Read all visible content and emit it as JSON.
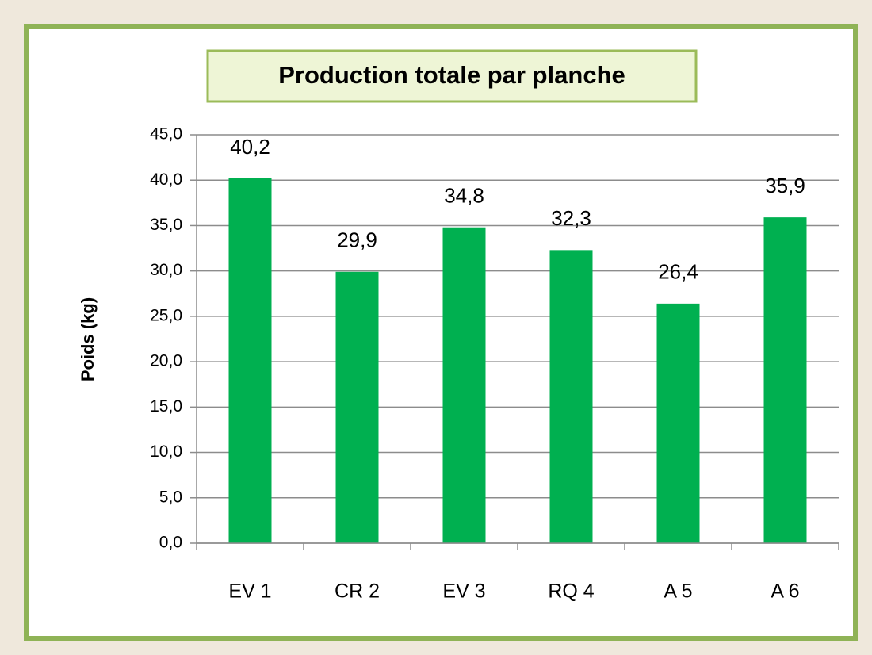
{
  "chart_data": {
    "type": "bar",
    "title": "Production totale par planche",
    "y_label": "Poids (kg)",
    "categories": [
      "EV 1",
      "CR 2",
      "EV 3",
      "RQ 4",
      "A 5",
      "A 6"
    ],
    "values": [
      40.2,
      29.9,
      34.8,
      32.3,
      26.4,
      35.9
    ],
    "value_labels": [
      "40,2",
      "29,9",
      "34,8",
      "32,3",
      "26,4",
      "35,9"
    ],
    "color": "#00b050",
    "ylim": [
      0,
      45
    ],
    "yticks": [
      {
        "value": 0,
        "label": "0,0"
      },
      {
        "value": 5,
        "label": "5,0"
      },
      {
        "value": 10,
        "label": "10,0"
      },
      {
        "value": 15,
        "label": "15,0"
      },
      {
        "value": 20,
        "label": "20,0"
      },
      {
        "value": 25,
        "label": "25,0"
      },
      {
        "value": 30,
        "label": "30,0"
      },
      {
        "value": 35,
        "label": "35,0"
      },
      {
        "value": 40,
        "label": "40,0"
      },
      {
        "value": 45,
        "label": "45,0"
      }
    ],
    "grid": true
  }
}
